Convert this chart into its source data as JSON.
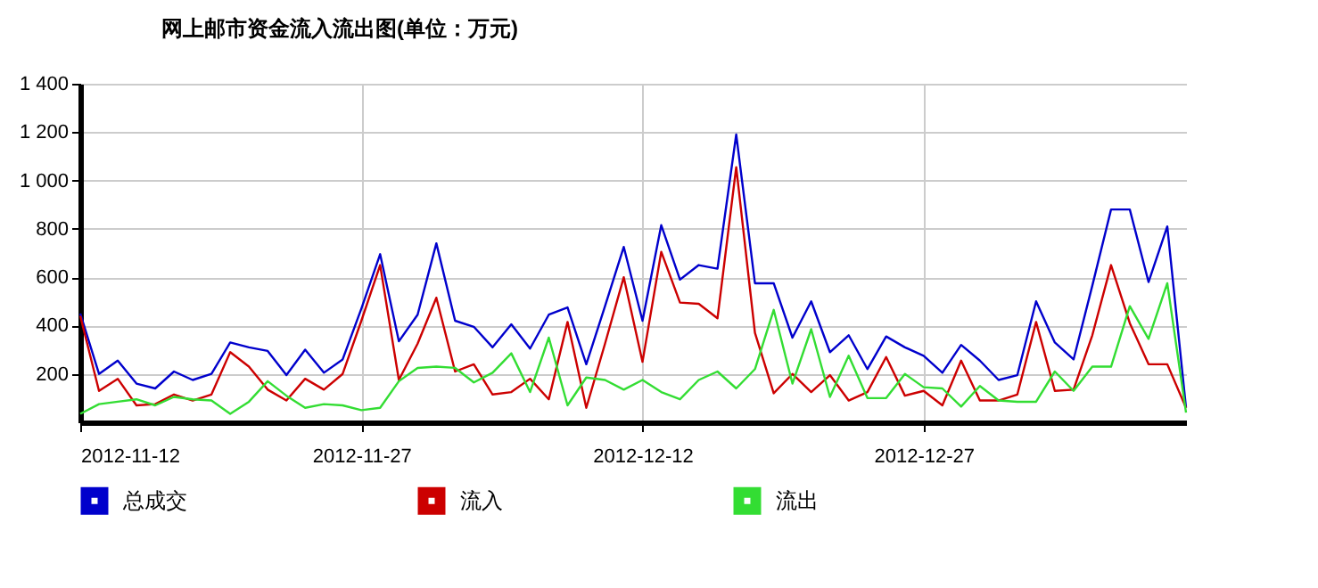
{
  "chart_data": {
    "type": "line",
    "title": "网上邮市资金流入流出图(单位：万元)",
    "x": [
      "2012-11-12",
      "2012-11-13",
      "2012-11-14",
      "2012-11-15",
      "2012-11-16",
      "2012-11-17",
      "2012-11-18",
      "2012-11-19",
      "2012-11-20",
      "2012-11-21",
      "2012-11-22",
      "2012-11-23",
      "2012-11-24",
      "2012-11-25",
      "2012-11-26",
      "2012-11-27",
      "2012-11-28",
      "2012-11-29",
      "2012-11-30",
      "2012-12-01",
      "2012-12-02",
      "2012-12-03",
      "2012-12-04",
      "2012-12-05",
      "2012-12-06",
      "2012-12-07",
      "2012-12-08",
      "2012-12-09",
      "2012-12-10",
      "2012-12-11",
      "2012-12-12",
      "2012-12-13",
      "2012-12-14",
      "2012-12-15",
      "2012-12-16",
      "2012-12-17",
      "2012-12-18",
      "2012-12-19",
      "2012-12-20",
      "2012-12-21",
      "2012-12-22",
      "2012-12-23",
      "2012-12-24",
      "2012-12-25",
      "2012-12-26",
      "2012-12-27",
      "2012-12-28",
      "2012-12-29",
      "2012-12-30",
      "2012-12-31",
      "2013-01-01",
      "2013-01-02",
      "2013-01-03",
      "2013-01-04",
      "2013-01-05",
      "2013-01-06",
      "2013-01-07",
      "2013-01-08",
      "2013-01-09",
      "2013-01-10"
    ],
    "series": [
      {
        "name": "总成交",
        "color": "#0000cc",
        "values": [
          450,
          200,
          255,
          160,
          140,
          210,
          175,
          200,
          330,
          310,
          295,
          195,
          300,
          205,
          260,
          470,
          695,
          335,
          445,
          740,
          420,
          395,
          310,
          405,
          305,
          445,
          475,
          240,
          480,
          725,
          420,
          815,
          590,
          650,
          635,
          1190,
          575,
          575,
          350,
          500,
          290,
          360,
          220,
          355,
          310,
          275,
          205,
          320,
          255,
          175,
          195,
          500,
          330,
          260,
          565,
          880,
          880,
          580,
          810,
          60
        ]
      },
      {
        "name": "流入",
        "color": "#cc0000",
        "values": [
          440,
          130,
          180,
          70,
          75,
          115,
          90,
          115,
          290,
          230,
          135,
          90,
          180,
          135,
          200,
          420,
          650,
          175,
          325,
          515,
          210,
          240,
          115,
          125,
          180,
          95,
          415,
          60,
          325,
          600,
          250,
          705,
          495,
          490,
          430,
          1055,
          370,
          120,
          200,
          125,
          195,
          90,
          125,
          270,
          110,
          130,
          70,
          255,
          90,
          90,
          115,
          415,
          130,
          135,
          360,
          650,
          410,
          240,
          240,
          60
        ]
      },
      {
        "name": "流出",
        "color": "#33dd33",
        "values": [
          35,
          75,
          85,
          95,
          70,
          105,
          95,
          90,
          35,
          85,
          170,
          110,
          60,
          75,
          70,
          50,
          60,
          170,
          225,
          230,
          225,
          165,
          205,
          285,
          125,
          350,
          70,
          185,
          175,
          135,
          175,
          125,
          95,
          175,
          210,
          140,
          220,
          465,
          160,
          385,
          105,
          275,
          100,
          100,
          200,
          145,
          140,
          65,
          150,
          90,
          85,
          85,
          210,
          130,
          230,
          230,
          480,
          345,
          575,
          40
        ]
      }
    ],
    "xlim": [
      "2012-11-12",
      "2013-01-10"
    ],
    "xticks": [
      "2012-11-12",
      "2012-11-27",
      "2012-12-12",
      "2012-12-27"
    ],
    "ylim": [
      0,
      1400
    ],
    "yticks": [
      {
        "value": 200,
        "label": "200"
      },
      {
        "value": 400,
        "label": "400"
      },
      {
        "value": 600,
        "label": "600"
      },
      {
        "value": 800,
        "label": "800"
      },
      {
        "value": 1000,
        "label": "1 000"
      },
      {
        "value": 1200,
        "label": "1 200"
      },
      {
        "value": 1400,
        "label": "1 400"
      }
    ],
    "grid": true,
    "legend": "bottom"
  }
}
